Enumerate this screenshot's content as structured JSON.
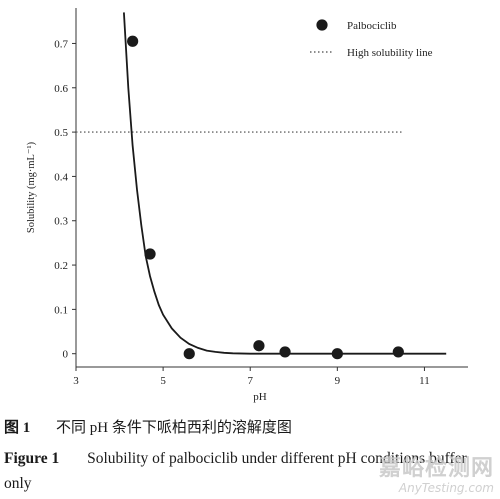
{
  "chart_data": {
    "type": "scatter",
    "xlabel": "pH",
    "ylabel": "Solubility (mg·mL⁻¹)",
    "xlim": [
      3,
      12
    ],
    "ylim": [
      -0.03,
      0.78
    ],
    "xticks": [
      3,
      5,
      7,
      9,
      11
    ],
    "yticks": [
      0,
      0.1,
      0.2,
      0.3,
      0.4,
      0.5,
      0.6,
      0.7
    ],
    "ytick_labels": [
      "0",
      "0.1",
      "0.2",
      "0.3",
      "0.4",
      "0.5",
      "0.6",
      "0.7"
    ],
    "grid": false,
    "legend_position": "top-right",
    "series": [
      {
        "name": "Palbociclib",
        "type": "scatter",
        "color": "#1a1a1a",
        "x": [
          4.3,
          4.7,
          5.6,
          7.2,
          7.8,
          9.0,
          10.4
        ],
        "y": [
          0.705,
          0.225,
          0.0,
          0.018,
          0.004,
          0.0,
          0.004
        ]
      },
      {
        "name": "High solubility line",
        "type": "dotted-line",
        "color": "#666666",
        "x": [
          3,
          10.5
        ],
        "y": [
          0.5,
          0.5
        ]
      },
      {
        "type": "fitted-curve",
        "color": "#1a1a1a",
        "x": [
          4.1,
          4.2,
          4.3,
          4.4,
          4.5,
          4.6,
          4.7,
          4.8,
          4.9,
          5.0,
          5.2,
          5.4,
          5.6,
          5.8,
          6.0,
          6.2,
          6.4,
          6.6,
          7.0,
          7.5,
          8.0,
          8.5,
          9.0,
          9.5,
          10.0,
          10.5,
          11.0,
          11.5
        ],
        "y": [
          0.77,
          0.6,
          0.47,
          0.37,
          0.29,
          0.22,
          0.175,
          0.14,
          0.11,
          0.088,
          0.057,
          0.036,
          0.022,
          0.013,
          0.007,
          0.004,
          0.002,
          0.001,
          0.0,
          0.0,
          0.0,
          0.0,
          0.0,
          0.0,
          0.0,
          0.0,
          0.0,
          0.0
        ]
      }
    ]
  },
  "caption": {
    "cn_label": "图 1",
    "cn_text": "不同 pH 条件下哌柏西利的溶解度图",
    "en_label": "Figure 1",
    "en_text": "Solubility of palbociclib under different pH conditions buffer only"
  },
  "watermark": {
    "cn": "嘉峪检测网",
    "en": "AnyTesting.com"
  }
}
